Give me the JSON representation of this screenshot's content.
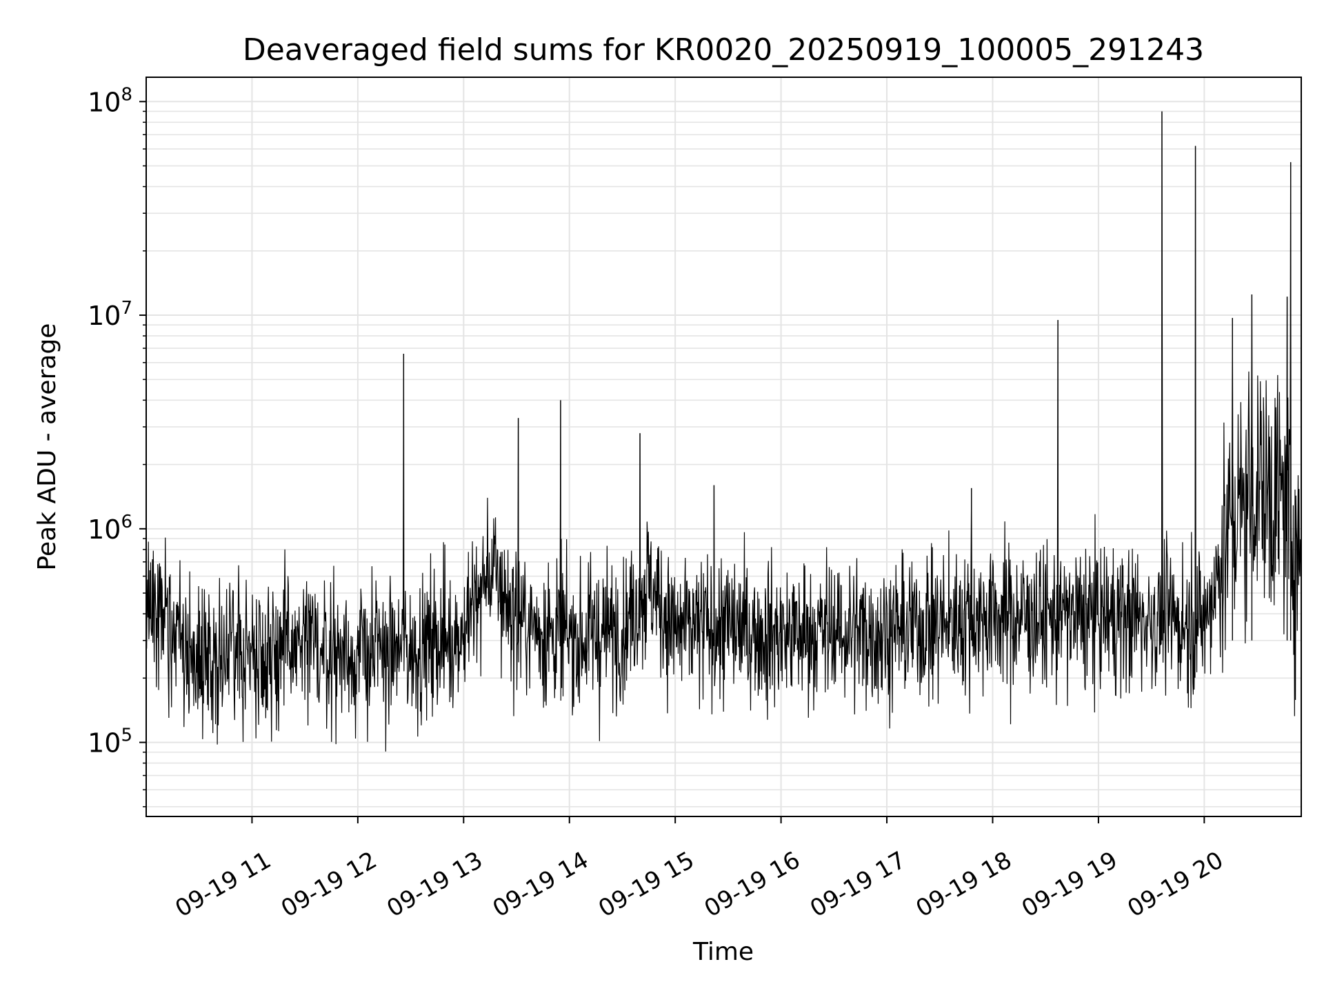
{
  "chart_data": {
    "type": "line",
    "title": "Deaveraged field sums for KR0020_20250919_100005_291243",
    "xlabel": "Time",
    "ylabel": "Peak ADU - average",
    "yscale": "log",
    "xlim": [
      "2025-09-19 10:00",
      "2025-09-19 20:55"
    ],
    "ylim": [
      45000,
      130000000
    ],
    "grid": true,
    "x_tick_labels": [
      "09-19 11",
      "09-19 12",
      "09-19 13",
      "09-19 14",
      "09-19 15",
      "09-19 16",
      "09-19 17",
      "09-19 18",
      "09-19 19",
      "09-19 20"
    ],
    "y_tick_labels": [
      {
        "base": "10",
        "exp": "5",
        "value": 100000
      },
      {
        "base": "10",
        "exp": "6",
        "value": 1000000
      },
      {
        "base": "10",
        "exp": "7",
        "value": 10000000
      },
      {
        "base": "10",
        "exp": "8",
        "value": 100000000
      }
    ],
    "line_color": "#000000",
    "series": [
      {
        "x": [
          "2025-09-19 10:00",
          "2025-09-19 10:30",
          "2025-09-19 11:00",
          "2025-09-19 11:30",
          "2025-09-19 12:00",
          "2025-09-19 12:30",
          "2025-09-19 13:00",
          "2025-09-19 13:15",
          "2025-09-19 13:30",
          "2025-09-19 14:00",
          "2025-09-19 14:30",
          "2025-09-19 14:45",
          "2025-09-19 15:00",
          "2025-09-19 15:30",
          "2025-09-19 16:00",
          "2025-09-19 16:30",
          "2025-09-19 17:00",
          "2025-09-19 17:30",
          "2025-09-19 18:00",
          "2025-09-19 18:30",
          "2025-09-19 19:00",
          "2025-09-19 19:30",
          "2025-09-19 20:00",
          "2025-09-19 20:15",
          "2025-09-19 20:30",
          "2025-09-19 20:45",
          "2025-09-19 20:55"
        ],
        "y": [
          450000,
          250000,
          270000,
          280000,
          260000,
          270000,
          330000,
          650000,
          380000,
          300000,
          340000,
          560000,
          330000,
          340000,
          320000,
          330000,
          330000,
          360000,
          400000,
          380000,
          390000,
          380000,
          360000,
          1000000,
          1700000,
          1300000,
          700000
        ]
      }
    ],
    "spikes": [
      {
        "x": "2025-09-19 12:26",
        "y": 6600000
      },
      {
        "x": "2025-09-19 13:31",
        "y": 3300000
      },
      {
        "x": "2025-09-19 13:55",
        "y": 4000000
      },
      {
        "x": "2025-09-19 14:40",
        "y": 2800000
      },
      {
        "x": "2025-09-19 15:22",
        "y": 1600000
      },
      {
        "x": "2025-09-19 17:48",
        "y": 1550000
      },
      {
        "x": "2025-09-19 18:37",
        "y": 9500000
      },
      {
        "x": "2025-09-19 19:36",
        "y": 90000000
      },
      {
        "x": "2025-09-19 19:55",
        "y": 62000000
      },
      {
        "x": "2025-09-19 20:16",
        "y": 9700000
      },
      {
        "x": "2025-09-19 20:27",
        "y": 12500000
      },
      {
        "x": "2025-09-19 20:47",
        "y": 12200000
      },
      {
        "x": "2025-09-19 20:49",
        "y": 52000000
      }
    ]
  }
}
